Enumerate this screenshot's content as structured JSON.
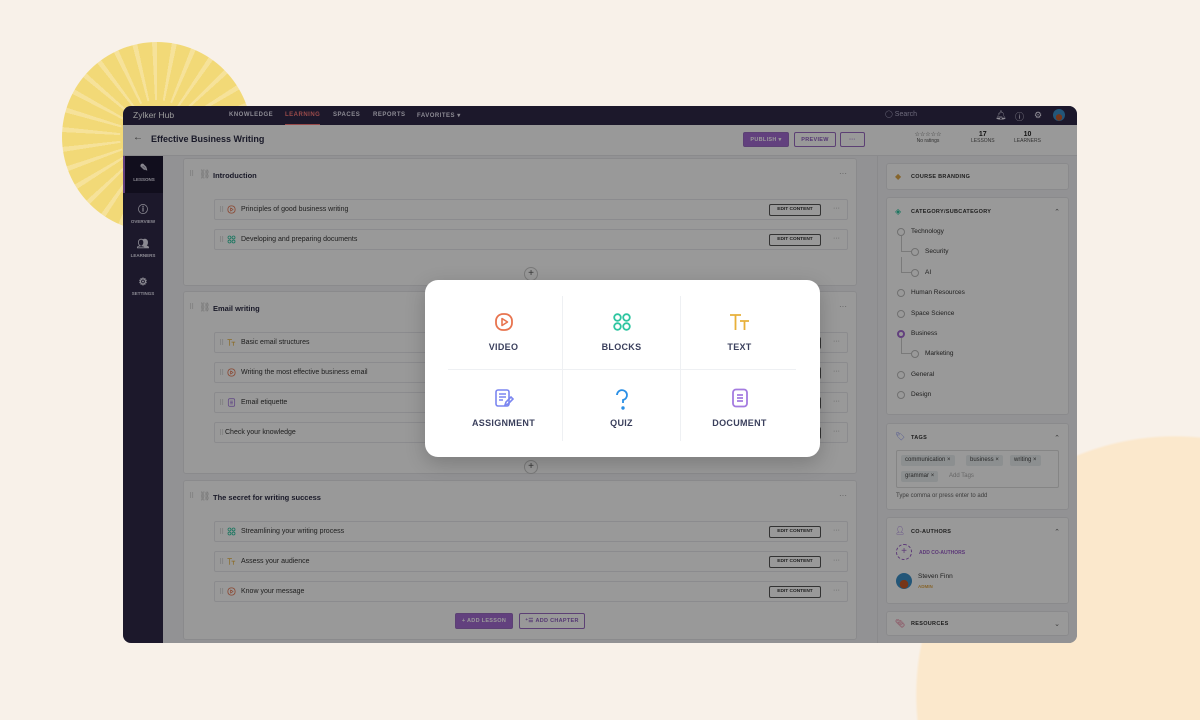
{
  "app": {
    "brand": "Zylker Hub",
    "nav": [
      "KNOWLEDGE",
      "LEARNING",
      "SPACES",
      "REPORTS",
      "FAVORITES ▾"
    ],
    "active_nav": "LEARNING",
    "search_placeholder": "Search"
  },
  "header": {
    "title": "Effective Business Writing",
    "publish": "PUBLISH ▾",
    "preview": "PREVIEW",
    "more": "···",
    "rating_stars": "☆☆☆☆☆",
    "rating_text": "No ratings",
    "lessons_count": "17",
    "lessons_label": "LESSONS",
    "learners_count": "10",
    "learners_label": "LEARNERS"
  },
  "sidebar": [
    "LESSONS",
    "OVERVIEW",
    "LEARNERS",
    "SETTINGS"
  ],
  "chapters": [
    {
      "title": "Introduction",
      "lessons": [
        {
          "type": "video",
          "title": "Principles of good business writing",
          "edit": "EDIT CONTENT"
        },
        {
          "type": "blocks",
          "title": "Developing and preparing documents",
          "edit": "EDIT CONTENT"
        }
      ]
    },
    {
      "title": "Email writing",
      "lessons": [
        {
          "type": "text",
          "title": "Basic email structures",
          "edit": "EDIT CONTENT"
        },
        {
          "type": "video",
          "title": "Writing the most effective business email",
          "edit": "EDIT CONTENT"
        },
        {
          "type": "document",
          "title": "Email etiquette",
          "edit": "EDIT CONTENT"
        },
        {
          "type": "quiz",
          "title": "Check your knowledge",
          "edit": "EDIT CONTENT"
        }
      ]
    },
    {
      "title": "The secret for writing success",
      "lessons": [
        {
          "type": "blocks",
          "title": "Streamlining your writing process",
          "edit": "EDIT CONTENT"
        },
        {
          "type": "text",
          "title": "Assess your audience",
          "edit": "EDIT CONTENT"
        },
        {
          "type": "video",
          "title": "Know your message",
          "edit": "EDIT CONTENT"
        }
      ]
    }
  ],
  "footer": {
    "add_lesson": "+ ADD LESSON",
    "add_chapter": "ADD CHAPTER"
  },
  "right": {
    "branding": "COURSE BRANDING",
    "category_title": "CATEGORY/SUBCATEGORY",
    "categories": [
      "Technology",
      "Security",
      "AI",
      "Human Resources",
      "Space Science",
      "Business",
      "Marketing",
      "General",
      "Design"
    ],
    "selected_category": "Business",
    "tags_title": "TAGS",
    "tags": [
      "communication",
      "business",
      "writing",
      "grammar"
    ],
    "tags_placeholder": "Add Tags",
    "tags_hint": "Type comma or press enter to add",
    "coauthors_title": "CO-AUTHORS",
    "add_coauthors": "ADD CO-AUTHORS",
    "author_name": "Steven Finn",
    "author_role": "ADMIN",
    "resources_title": "RESOURCES"
  },
  "modal": {
    "options": [
      {
        "label": "VIDEO",
        "icon": "video-icon",
        "color": "#e8744f"
      },
      {
        "label": "BLOCKS",
        "icon": "blocks-icon",
        "color": "#2dc5a0"
      },
      {
        "label": "TEXT",
        "icon": "text-icon",
        "color": "#e8b03a"
      },
      {
        "label": "ASSIGNMENT",
        "icon": "assignment-icon",
        "color": "#7b86f0"
      },
      {
        "label": "QUIZ",
        "icon": "quiz-icon",
        "color": "#2a8fe6"
      },
      {
        "label": "DOCUMENT",
        "icon": "document-icon",
        "color": "#a47be0"
      }
    ]
  }
}
